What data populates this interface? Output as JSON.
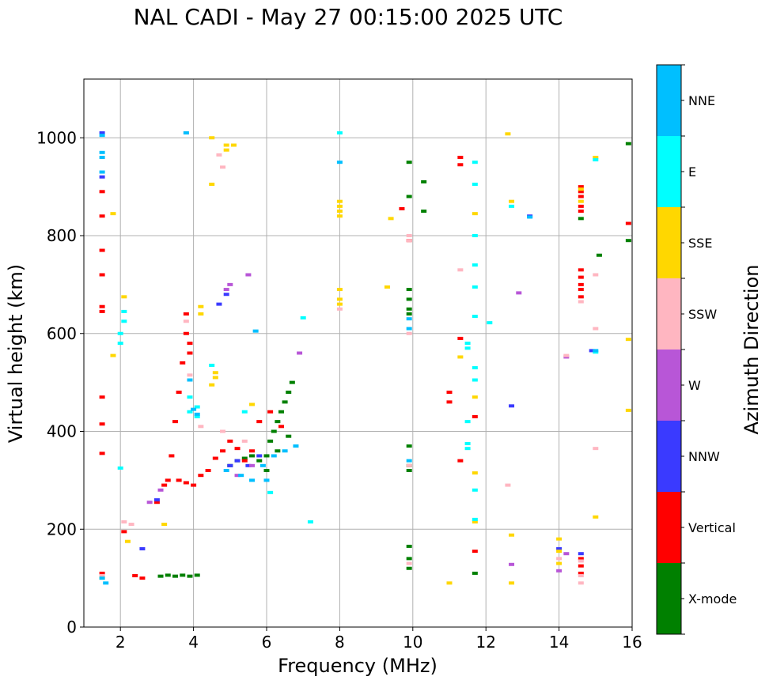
{
  "chart_data": {
    "type": "scatter",
    "title": "NAL CADI - May 27 00:15:00 2025 UTC",
    "xlabel": "Frequency (MHz)",
    "ylabel": "Virtual height (km)",
    "xlim": [
      1,
      16
    ],
    "ylim": [
      0,
      1120
    ],
    "xticks": [
      2,
      4,
      6,
      8,
      10,
      12,
      14,
      16
    ],
    "yticks": [
      0,
      200,
      400,
      600,
      800,
      1000
    ],
    "grid": true,
    "colorbar": {
      "label": "Azimuth Direction",
      "categories": [
        {
          "name": "X-mode",
          "color": "#008000"
        },
        {
          "name": "Vertical",
          "color": "#ff0000"
        },
        {
          "name": "NNW",
          "color": "#3a3aff"
        },
        {
          "name": "W",
          "color": "#b856d7"
        },
        {
          "name": "SSW",
          "color": "#ffb6c1"
        },
        {
          "name": "SSE",
          "color": "#ffd700"
        },
        {
          "name": "E",
          "color": "#00ffff"
        },
        {
          "name": "NNE",
          "color": "#00bfff"
        }
      ]
    },
    "series": [
      {
        "name": "X-mode",
        "points": [
          [
            3.1,
            104
          ],
          [
            3.3,
            106
          ],
          [
            3.5,
            104
          ],
          [
            3.7,
            106
          ],
          [
            3.9,
            104
          ],
          [
            4.1,
            106
          ],
          [
            5.0,
            330
          ],
          [
            5.2,
            340
          ],
          [
            5.4,
            345
          ],
          [
            5.6,
            350
          ],
          [
            5.8,
            340
          ],
          [
            6.0,
            350
          ],
          [
            6.1,
            380
          ],
          [
            6.2,
            400
          ],
          [
            6.3,
            420
          ],
          [
            6.4,
            440
          ],
          [
            6.5,
            460
          ],
          [
            6.6,
            480
          ],
          [
            6.7,
            500
          ],
          [
            6.0,
            320
          ],
          [
            6.3,
            360
          ],
          [
            6.6,
            390
          ],
          [
            9.9,
            950
          ],
          [
            9.9,
            880
          ],
          [
            9.9,
            690
          ],
          [
            9.9,
            670
          ],
          [
            9.9,
            650
          ],
          [
            9.9,
            640
          ],
          [
            9.9,
            370
          ],
          [
            9.9,
            330
          ],
          [
            9.9,
            320
          ],
          [
            9.9,
            165
          ],
          [
            9.9,
            140
          ],
          [
            9.9,
            120
          ],
          [
            10.3,
            910
          ],
          [
            10.3,
            850
          ],
          [
            11.7,
            110
          ],
          [
            14.6,
            835
          ],
          [
            15.1,
            760
          ],
          [
            15.9,
            988
          ],
          [
            15.9,
            790
          ]
        ]
      },
      {
        "name": "Vertical",
        "points": [
          [
            1.5,
            890
          ],
          [
            1.5,
            840
          ],
          [
            1.5,
            770
          ],
          [
            1.5,
            720
          ],
          [
            1.5,
            655
          ],
          [
            1.5,
            645
          ],
          [
            1.5,
            470
          ],
          [
            1.5,
            415
          ],
          [
            1.5,
            355
          ],
          [
            1.5,
            110
          ],
          [
            2.1,
            195
          ],
          [
            2.4,
            105
          ],
          [
            2.6,
            100
          ],
          [
            3.0,
            255
          ],
          [
            3.2,
            290
          ],
          [
            3.3,
            300
          ],
          [
            3.4,
            350
          ],
          [
            3.5,
            420
          ],
          [
            3.6,
            480
          ],
          [
            3.7,
            540
          ],
          [
            3.8,
            600
          ],
          [
            3.9,
            580
          ],
          [
            3.8,
            640
          ],
          [
            3.9,
            560
          ],
          [
            3.6,
            300
          ],
          [
            3.8,
            295
          ],
          [
            4.0,
            290
          ],
          [
            4.2,
            310
          ],
          [
            4.4,
            320
          ],
          [
            4.6,
            345
          ],
          [
            4.8,
            360
          ],
          [
            5.0,
            380
          ],
          [
            5.2,
            365
          ],
          [
            5.4,
            340
          ],
          [
            5.6,
            360
          ],
          [
            5.8,
            420
          ],
          [
            6.1,
            440
          ],
          [
            6.4,
            410
          ],
          [
            9.7,
            855
          ],
          [
            9.9,
            790
          ],
          [
            11.0,
            480
          ],
          [
            11.0,
            460
          ],
          [
            11.3,
            960
          ],
          [
            11.3,
            945
          ],
          [
            11.3,
            590
          ],
          [
            11.3,
            340
          ],
          [
            11.7,
            430
          ],
          [
            11.7,
            155
          ],
          [
            14.6,
            900
          ],
          [
            14.6,
            890
          ],
          [
            14.6,
            880
          ],
          [
            14.6,
            860
          ],
          [
            14.6,
            850
          ],
          [
            14.6,
            730
          ],
          [
            14.6,
            715
          ],
          [
            14.6,
            700
          ],
          [
            14.6,
            690
          ],
          [
            14.6,
            675
          ],
          [
            14.6,
            140
          ],
          [
            14.6,
            125
          ],
          [
            14.6,
            110
          ],
          [
            15.9,
            825
          ]
        ]
      },
      {
        "name": "NNW",
        "points": [
          [
            1.5,
            1010
          ],
          [
            1.5,
            920
          ],
          [
            2.6,
            160
          ],
          [
            3.0,
            260
          ],
          [
            4.7,
            660
          ],
          [
            4.9,
            680
          ],
          [
            5.0,
            330
          ],
          [
            5.2,
            340
          ],
          [
            5.5,
            330
          ],
          [
            5.8,
            350
          ],
          [
            12.7,
            452
          ],
          [
            13.2,
            840
          ],
          [
            14.6,
            150
          ],
          [
            14.9,
            565
          ],
          [
            14.0,
            160
          ]
        ]
      },
      {
        "name": "W",
        "points": [
          [
            2.8,
            255
          ],
          [
            3.1,
            280
          ],
          [
            4.9,
            690
          ],
          [
            5.0,
            700
          ],
          [
            5.5,
            720
          ],
          [
            6.9,
            560
          ],
          [
            5.2,
            310
          ],
          [
            5.6,
            330
          ],
          [
            12.7,
            128
          ],
          [
            12.9,
            683
          ],
          [
            14.0,
            115
          ],
          [
            14.2,
            150
          ],
          [
            14.2,
            552
          ]
        ]
      },
      {
        "name": "SSW",
        "points": [
          [
            1.5,
            105
          ],
          [
            2.1,
            215
          ],
          [
            2.3,
            210
          ],
          [
            3.8,
            1010
          ],
          [
            4.7,
            965
          ],
          [
            4.8,
            940
          ],
          [
            3.8,
            625
          ],
          [
            3.9,
            515
          ],
          [
            4.2,
            410
          ],
          [
            4.8,
            400
          ],
          [
            5.4,
            380
          ],
          [
            8.0,
            650
          ],
          [
            9.9,
            800
          ],
          [
            9.9,
            790
          ],
          [
            9.9,
            600
          ],
          [
            9.9,
            330
          ],
          [
            9.9,
            130
          ],
          [
            11.3,
            730
          ],
          [
            12.6,
            290
          ],
          [
            14.0,
            140
          ],
          [
            14.6,
            135
          ],
          [
            14.6,
            105
          ],
          [
            14.6,
            90
          ],
          [
            14.6,
            665
          ],
          [
            15.0,
            720
          ],
          [
            15.0,
            610
          ],
          [
            15.0,
            365
          ],
          [
            14.2,
            555
          ]
        ]
      },
      {
        "name": "SSE",
        "points": [
          [
            1.5,
            100
          ],
          [
            1.8,
            845
          ],
          [
            1.8,
            555
          ],
          [
            2.1,
            675
          ],
          [
            2.2,
            175
          ],
          [
            3.2,
            210
          ],
          [
            4.2,
            655
          ],
          [
            4.2,
            640
          ],
          [
            4.5,
            905
          ],
          [
            4.5,
            1000
          ],
          [
            4.9,
            985
          ],
          [
            4.9,
            975
          ],
          [
            5.1,
            985
          ],
          [
            4.5,
            495
          ],
          [
            4.6,
            520
          ],
          [
            4.6,
            510
          ],
          [
            5.6,
            455
          ],
          [
            8.0,
            870
          ],
          [
            8.0,
            860
          ],
          [
            8.0,
            850
          ],
          [
            8.0,
            840
          ],
          [
            8.0,
            690
          ],
          [
            8.0,
            670
          ],
          [
            8.0,
            660
          ],
          [
            9.4,
            835
          ],
          [
            9.3,
            695
          ],
          [
            11.3,
            552
          ],
          [
            11.7,
            845
          ],
          [
            11.7,
            470
          ],
          [
            11.7,
            315
          ],
          [
            11.7,
            215
          ],
          [
            12.6,
            1008
          ],
          [
            12.7,
            870
          ],
          [
            12.7,
            188
          ],
          [
            12.7,
            90
          ],
          [
            14.0,
            180
          ],
          [
            14.0,
            155
          ],
          [
            14.0,
            130
          ],
          [
            14.6,
            895
          ],
          [
            14.6,
            870
          ],
          [
            15.0,
            960
          ],
          [
            15.0,
            225
          ],
          [
            11.0,
            90
          ],
          [
            15.9,
            588
          ],
          [
            15.9,
            443
          ]
        ]
      },
      {
        "name": "E",
        "points": [
          [
            2.1,
            645
          ],
          [
            2.1,
            625
          ],
          [
            2.0,
            600
          ],
          [
            2.0,
            580
          ],
          [
            2.0,
            325
          ],
          [
            3.9,
            470
          ],
          [
            3.9,
            440
          ],
          [
            4.1,
            450
          ],
          [
            4.1,
            430
          ],
          [
            4.5,
            535
          ],
          [
            5.4,
            440
          ],
          [
            6.1,
            275
          ],
          [
            7.2,
            215
          ],
          [
            7.0,
            632
          ],
          [
            8.0,
            1010
          ],
          [
            11.5,
            580
          ],
          [
            11.5,
            570
          ],
          [
            11.5,
            420
          ],
          [
            11.5,
            375
          ],
          [
            11.5,
            365
          ],
          [
            11.7,
            950
          ],
          [
            11.7,
            905
          ],
          [
            11.7,
            800
          ],
          [
            11.7,
            740
          ],
          [
            11.7,
            695
          ],
          [
            11.7,
            635
          ],
          [
            11.7,
            530
          ],
          [
            11.7,
            505
          ],
          [
            11.7,
            280
          ],
          [
            11.7,
            220
          ],
          [
            12.1,
            622
          ],
          [
            12.7,
            860
          ],
          [
            15.0,
            955
          ],
          [
            15.0,
            562
          ]
        ]
      },
      {
        "name": "NNE",
        "points": [
          [
            1.5,
            1005
          ],
          [
            1.5,
            970
          ],
          [
            1.5,
            960
          ],
          [
            1.5,
            930
          ],
          [
            1.5,
            100
          ],
          [
            1.6,
            90
          ],
          [
            3.8,
            1010
          ],
          [
            3.9,
            505
          ],
          [
            4.0,
            445
          ],
          [
            4.1,
            435
          ],
          [
            4.9,
            320
          ],
          [
            5.3,
            310
          ],
          [
            5.6,
            300
          ],
          [
            5.9,
            330
          ],
          [
            6.2,
            350
          ],
          [
            6.5,
            360
          ],
          [
            6.8,
            370
          ],
          [
            6.0,
            300
          ],
          [
            5.7,
            605
          ],
          [
            8.0,
            950
          ],
          [
            9.9,
            630
          ],
          [
            9.9,
            610
          ],
          [
            9.9,
            340
          ],
          [
            13.2,
            838
          ],
          [
            15.0,
            565
          ]
        ]
      }
    ]
  }
}
